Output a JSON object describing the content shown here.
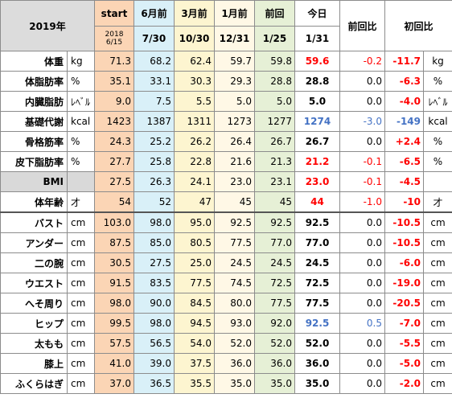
{
  "header": {
    "year": "2019年",
    "start": "start",
    "start_date": "2018\n6/15",
    "col_6m": "6月前",
    "col_3m": "3月前",
    "col_1m": "1月前",
    "col_prev": "前回",
    "col_today": "今日",
    "col_diff_prev": "前回比",
    "col_diff_first": "初回比",
    "date_6m": "7/30",
    "date_3m": "10/30",
    "date_1m": "12/31",
    "date_prev": "1/25",
    "date_today": "1/31"
  },
  "colors": {
    "start": "#fbd5b5",
    "six_months": "#d9f0f8",
    "three_months": "#fdf5d0",
    "one_month": "#fff8e6",
    "previous": "#e6f0d6",
    "red": "#ff0000",
    "blue": "#4472c4"
  },
  "rows": [
    {
      "name": "体重",
      "unit": "kg",
      "start": "71.3",
      "m6": "68.2",
      "m3": "62.4",
      "m1": "59.7",
      "prev": "59.8",
      "today": "59.6",
      "today_color": "red",
      "diff_prev": "-0.2",
      "diff_prev_color": "red",
      "diff_first": "-11.7",
      "diff_first_color": "red",
      "unit2": "kg"
    },
    {
      "name": "体脂肪率",
      "unit": "%",
      "start": "35.1",
      "m6": "33.1",
      "m3": "30.3",
      "m1": "29.3",
      "prev": "28.8",
      "today": "28.8",
      "today_color": "black",
      "diff_prev": "0.0",
      "diff_prev_color": "black",
      "diff_first": "-6.3",
      "diff_first_color": "red",
      "unit2": "%"
    },
    {
      "name": "内臓脂肪",
      "unit": "ﾚﾍﾞﾙ",
      "start": "9.0",
      "m6": "7.5",
      "m3": "5.5",
      "m1": "5.0",
      "prev": "5.0",
      "today": "5.0",
      "today_color": "black",
      "diff_prev": "0.0",
      "diff_prev_color": "black",
      "diff_first": "-4.0",
      "diff_first_color": "red",
      "unit2": "ﾚﾍﾞﾙ"
    },
    {
      "name": "基礎代謝",
      "unit": "kcal",
      "start": "1423",
      "m6": "1387",
      "m3": "1311",
      "m1": "1273",
      "prev": "1277",
      "today": "1274",
      "today_color": "blue",
      "diff_prev": "-3.0",
      "diff_prev_color": "blue",
      "diff_first": "-149",
      "diff_first_color": "blue",
      "unit2": "kcal"
    },
    {
      "name": "骨格筋率",
      "unit": "%",
      "start": "24.3",
      "m6": "25.2",
      "m3": "26.2",
      "m1": "26.4",
      "prev": "26.7",
      "today": "26.7",
      "today_color": "black",
      "diff_prev": "0.0",
      "diff_prev_color": "black",
      "diff_first": "+2.4",
      "diff_first_color": "red",
      "unit2": "%"
    },
    {
      "name": "皮下脂肪率",
      "unit": "%",
      "start": "27.7",
      "m6": "25.8",
      "m3": "22.8",
      "m1": "21.6",
      "prev": "21.3",
      "today": "21.2",
      "today_color": "red",
      "diff_prev": "-0.1",
      "diff_prev_color": "red",
      "diff_first": "-6.5",
      "diff_first_color": "red",
      "unit2": "%"
    },
    {
      "name": "BMI",
      "unit": "",
      "start": "27.5",
      "m6": "26.3",
      "m3": "24.1",
      "m1": "23.0",
      "prev": "23.1",
      "today": "23.0",
      "today_color": "red",
      "diff_prev": "-0.1",
      "diff_prev_color": "red",
      "diff_first": "-4.5",
      "diff_first_color": "red",
      "unit2": ""
    },
    {
      "name": "体年齢",
      "unit": "才",
      "start": "54",
      "m6": "52",
      "m3": "47",
      "m1": "45",
      "prev": "45",
      "today": "44",
      "today_color": "red",
      "diff_prev": "-1.0",
      "diff_prev_color": "red",
      "diff_first": "-10",
      "diff_first_color": "red",
      "unit2": "才"
    },
    {
      "name": "バスト",
      "unit": "cm",
      "start": "103.0",
      "m6": "98.0",
      "m3": "95.0",
      "m1": "92.5",
      "prev": "92.5",
      "today": "92.5",
      "today_color": "black",
      "diff_prev": "0.0",
      "diff_prev_color": "black",
      "diff_first": "-10.5",
      "diff_first_color": "red",
      "unit2": "cm"
    },
    {
      "name": "アンダー",
      "unit": "cm",
      "start": "87.5",
      "m6": "85.0",
      "m3": "80.5",
      "m1": "77.5",
      "prev": "77.0",
      "today": "77.0",
      "today_color": "black",
      "diff_prev": "0.0",
      "diff_prev_color": "black",
      "diff_first": "-10.5",
      "diff_first_color": "red",
      "unit2": "cm"
    },
    {
      "name": "二の腕",
      "unit": "cm",
      "start": "30.5",
      "m6": "27.5",
      "m3": "25.0",
      "m1": "24.5",
      "prev": "24.5",
      "today": "24.5",
      "today_color": "black",
      "diff_prev": "0.0",
      "diff_prev_color": "black",
      "diff_first": "-6.0",
      "diff_first_color": "red",
      "unit2": "cm"
    },
    {
      "name": "ウエスト",
      "unit": "cm",
      "start": "91.5",
      "m6": "83.5",
      "m3": "77.5",
      "m1": "74.5",
      "prev": "72.5",
      "today": "72.5",
      "today_color": "black",
      "diff_prev": "0.0",
      "diff_prev_color": "black",
      "diff_first": "-19.0",
      "diff_first_color": "red",
      "unit2": "cm"
    },
    {
      "name": "へそ周り",
      "unit": "cm",
      "start": "98.0",
      "m6": "90.0",
      "m3": "84.5",
      "m1": "80.0",
      "prev": "77.5",
      "today": "77.5",
      "today_color": "black",
      "diff_prev": "0.0",
      "diff_prev_color": "black",
      "diff_first": "-20.5",
      "diff_first_color": "red",
      "unit2": "cm"
    },
    {
      "name": "ヒップ",
      "unit": "cm",
      "start": "99.5",
      "m6": "98.0",
      "m3": "94.5",
      "m1": "93.0",
      "prev": "92.0",
      "today": "92.5",
      "today_color": "blue",
      "diff_prev": "0.5",
      "diff_prev_color": "blue",
      "diff_first": "-7.0",
      "diff_first_color": "red",
      "unit2": "cm"
    },
    {
      "name": "太もも",
      "unit": "cm",
      "start": "57.5",
      "m6": "56.5",
      "m3": "54.0",
      "m1": "52.0",
      "prev": "52.0",
      "today": "52.0",
      "today_color": "black",
      "diff_prev": "0.0",
      "diff_prev_color": "black",
      "diff_first": "-5.5",
      "diff_first_color": "red",
      "unit2": "cm"
    },
    {
      "name": "膝上",
      "unit": "cm",
      "start": "41.0",
      "m6": "39.0",
      "m3": "37.5",
      "m1": "36.0",
      "prev": "36.0",
      "today": "36.0",
      "today_color": "black",
      "diff_prev": "0.0",
      "diff_prev_color": "black",
      "diff_first": "-5.0",
      "diff_first_color": "red",
      "unit2": "cm"
    },
    {
      "name": "ふくらはぎ",
      "unit": "cm",
      "start": "37.0",
      "m6": "36.5",
      "m3": "35.5",
      "m1": "35.0",
      "prev": "35.0",
      "today": "35.0",
      "today_color": "black",
      "diff_prev": "0.0",
      "diff_prev_color": "black",
      "diff_first": "-2.0",
      "diff_first_color": "red",
      "unit2": "cm"
    }
  ]
}
